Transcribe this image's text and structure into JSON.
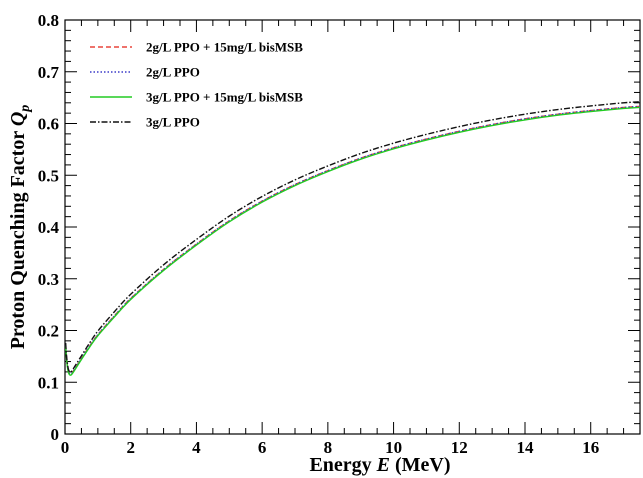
{
  "chart_data": {
    "type": "line",
    "title": "",
    "xlabel": "Energy",
    "xlabel_var": "E",
    "xlabel_unit": "(MeV)",
    "ylabel": "Proton Quenching Factor",
    "ylabel_var": "Q",
    "ylabel_sub": "p",
    "xlim": [
      0,
      17.5
    ],
    "ylim": [
      0,
      0.8
    ],
    "xticks": [
      0,
      2,
      4,
      6,
      8,
      10,
      12,
      14,
      16
    ],
    "yticks": [
      0,
      0.1,
      0.2,
      0.3,
      0.4,
      0.5,
      0.6,
      0.7,
      0.8
    ],
    "legend_position": "top-left",
    "grid": false,
    "x": [
      0.02,
      0.05,
      0.1,
      0.15,
      0.2,
      0.3,
      0.5,
      0.75,
      1,
      1.5,
      2,
      3,
      4,
      5,
      6,
      7,
      8,
      9,
      10,
      11,
      12,
      13,
      14,
      15,
      16,
      17,
      17.5
    ],
    "series": [
      {
        "name": "2g/L PPO + 15mg/L bisMSB",
        "color": "#e8453c",
        "dash": "5,3",
        "values": [
          0.172,
          0.145,
          0.122,
          0.116,
          0.117,
          0.126,
          0.146,
          0.17,
          0.192,
          0.228,
          0.262,
          0.318,
          0.367,
          0.412,
          0.45,
          0.482,
          0.509,
          0.533,
          0.553,
          0.57,
          0.585,
          0.598,
          0.609,
          0.618,
          0.625,
          0.631,
          0.633
        ]
      },
      {
        "name": "2g/L PPO",
        "color": "#3b3bc8",
        "dash": "1.5,2",
        "values": [
          0.172,
          0.145,
          0.122,
          0.116,
          0.117,
          0.126,
          0.146,
          0.17,
          0.192,
          0.228,
          0.262,
          0.318,
          0.367,
          0.412,
          0.45,
          0.482,
          0.509,
          0.533,
          0.553,
          0.57,
          0.585,
          0.598,
          0.609,
          0.618,
          0.625,
          0.631,
          0.633
        ]
      },
      {
        "name": "3g/L PPO + 15mg/L bisMSB",
        "color": "#22cc22",
        "dash": "",
        "values": [
          0.17,
          0.143,
          0.12,
          0.114,
          0.115,
          0.124,
          0.144,
          0.168,
          0.19,
          0.226,
          0.26,
          0.316,
          0.365,
          0.41,
          0.448,
          0.48,
          0.507,
          0.531,
          0.551,
          0.568,
          0.583,
          0.596,
          0.607,
          0.616,
          0.623,
          0.629,
          0.631
        ]
      },
      {
        "name": "3g/L PPO",
        "color": "#111111",
        "dash": "6,2,1.5,2",
        "values": [
          0.176,
          0.149,
          0.126,
          0.12,
          0.121,
          0.131,
          0.151,
          0.176,
          0.199,
          0.236,
          0.27,
          0.327,
          0.376,
          0.421,
          0.459,
          0.491,
          0.518,
          0.542,
          0.562,
          0.579,
          0.594,
          0.607,
          0.618,
          0.627,
          0.634,
          0.64,
          0.642
        ]
      }
    ]
  }
}
